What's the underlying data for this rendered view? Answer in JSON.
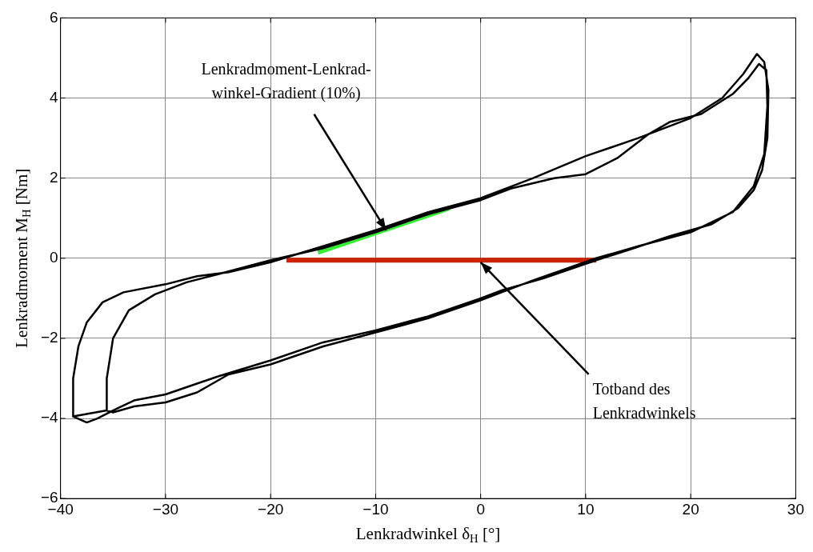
{
  "chart_data": {
    "type": "line",
    "xlabel": "Lenkradwinkel δ$_{H}$ [°]",
    "ylabel": "Lenkradmoment M$_{H}$ [Nm]",
    "xlim": [
      -40,
      30
    ],
    "xticks": [
      -40,
      -30,
      -20,
      -10,
      0,
      10,
      20,
      30
    ],
    "ylim": [
      -6,
      6
    ],
    "yticks": [
      -6,
      -4,
      -2,
      0,
      2,
      4,
      6
    ],
    "grid": true,
    "legend": false,
    "marker": "none",
    "line_style": "solid",
    "series": [
      {
        "color": "#000000",
        "x": [
          -38.8,
          -38.8,
          -38.3,
          -37.5,
          -36,
          -34,
          -30,
          -27,
          -24,
          -20,
          -15,
          -10,
          -5,
          0,
          5,
          10,
          15,
          20,
          23,
          25,
          26.3,
          27,
          27.4,
          27.3,
          26.8,
          26,
          24.5,
          22,
          18,
          14,
          11,
          6,
          2,
          0,
          -5,
          -10,
          -15,
          -20,
          -25,
          -30,
          -33,
          -35,
          -36.5,
          -37.5,
          -38.8,
          -35.6,
          -35.6,
          -35,
          -33.5,
          -31,
          -28,
          -25,
          -20,
          -15,
          -10,
          -5,
          0,
          3,
          7,
          10,
          13,
          16,
          18,
          21,
          24,
          25.5,
          26.5,
          27.2,
          27.3,
          27,
          26,
          24,
          20,
          15,
          11,
          5,
          0,
          -5,
          -10,
          -15,
          -20,
          -24,
          -27,
          -30,
          -33,
          -35,
          -35.6
        ],
        "values": [
          -3.95,
          -3.0,
          -2.2,
          -1.6,
          -1.1,
          -0.85,
          -0.65,
          -0.45,
          -0.35,
          -0.1,
          0.3,
          0.7,
          1.15,
          1.5,
          2.0,
          2.55,
          3.0,
          3.5,
          4.0,
          4.6,
          5.1,
          4.9,
          4.2,
          3.0,
          2.2,
          1.7,
          1.25,
          0.85,
          0.55,
          0.2,
          -0.05,
          -0.5,
          -0.8,
          -1.0,
          -1.45,
          -1.8,
          -2.1,
          -2.55,
          -2.95,
          -3.4,
          -3.55,
          -3.8,
          -4.0,
          -4.1,
          -3.95,
          -3.8,
          -3.0,
          -2.0,
          -1.3,
          -0.9,
          -0.6,
          -0.4,
          -0.05,
          0.25,
          0.65,
          1.1,
          1.45,
          1.75,
          2.0,
          2.1,
          2.5,
          3.1,
          3.4,
          3.6,
          4.1,
          4.5,
          4.85,
          4.7,
          3.8,
          2.6,
          1.8,
          1.15,
          0.65,
          0.3,
          0.0,
          -0.55,
          -1.05,
          -1.5,
          -1.85,
          -2.2,
          -2.65,
          -2.9,
          -3.35,
          -3.6,
          -3.7,
          -3.85,
          -3.8
        ]
      },
      {
        "color": "#33ee33",
        "x": [
          -15.5,
          -3
        ],
        "values": [
          0.15,
          1.25
        ]
      },
      {
        "color": "#cc2200",
        "x": [
          -18.5,
          11
        ],
        "values": [
          -0.05,
          -0.05
        ]
      }
    ],
    "annotations": [
      {
        "text": "Lenkradmoment-Lenkrad-\nwinkel-Gradient (10%)",
        "x": -9,
        "y": 0.7
      },
      {
        "text": "Totband des\nLenkradwinkels",
        "x": 0,
        "y": -0.1
      }
    ]
  }
}
